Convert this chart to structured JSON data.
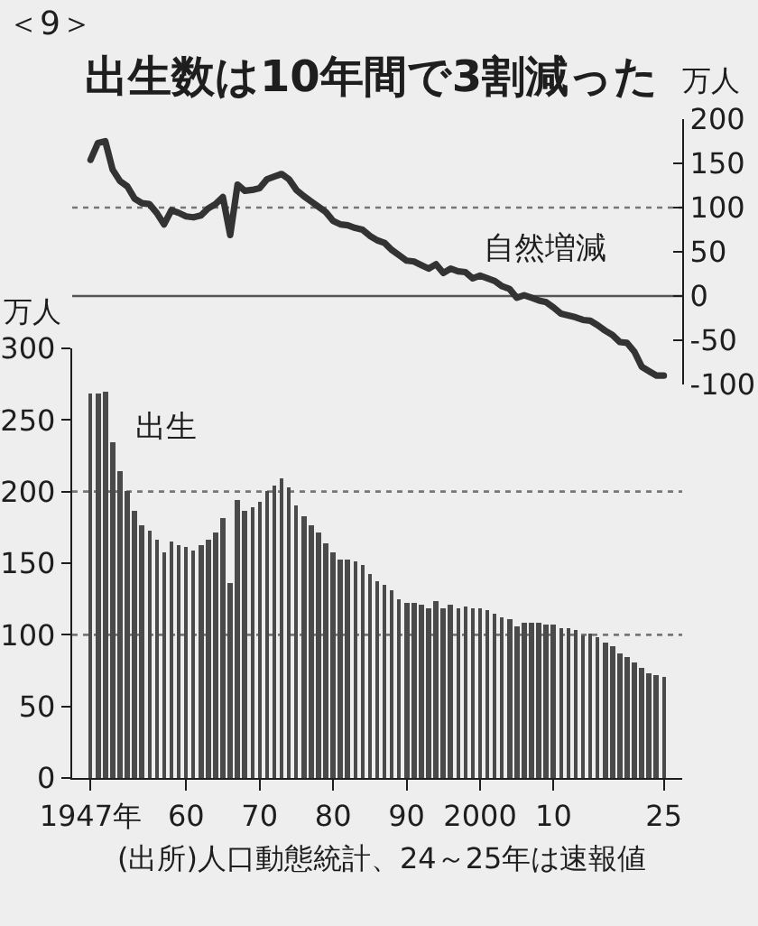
{
  "chart_data": [
    {
      "type": "line",
      "title": "出生数は10年間で3割減った",
      "ylabel": "万人",
      "annotations": [
        "＜9＞"
      ],
      "x": [
        1947,
        1948,
        1949,
        1950,
        1951,
        1952,
        1953,
        1954,
        1955,
        1956,
        1957,
        1958,
        1959,
        1960,
        1961,
        1962,
        1963,
        1964,
        1965,
        1966,
        1967,
        1968,
        1969,
        1970,
        1971,
        1972,
        1973,
        1974,
        1975,
        1976,
        1977,
        1978,
        1979,
        1980,
        1981,
        1982,
        1983,
        1984,
        1985,
        1986,
        1987,
        1988,
        1989,
        1990,
        1991,
        1992,
        1993,
        1994,
        1995,
        1996,
        1997,
        1998,
        1999,
        2000,
        2001,
        2002,
        2003,
        2004,
        2005,
        2006,
        2007,
        2008,
        2009,
        2010,
        2011,
        2012,
        2013,
        2014,
        2015,
        2016,
        2017,
        2018,
        2019,
        2020,
        2021,
        2022,
        2023,
        2024,
        2025
      ],
      "series": [
        {
          "name": "自然増減",
          "color": "#333333",
          "values": [
            154,
            173,
            175,
            143,
            130,
            124,
            110,
            105,
            104,
            94,
            81,
            97,
            94,
            90,
            89,
            91,
            99,
            104,
            112,
            69,
            126,
            119,
            120,
            122,
            132,
            135,
            138,
            132,
            120,
            113,
            107,
            101,
            95,
            85,
            81,
            80,
            77,
            75,
            68,
            63,
            60,
            52,
            46,
            40,
            39,
            35,
            31,
            36,
            26,
            31,
            28,
            27,
            20,
            23,
            20,
            17,
            11,
            8,
            -2,
            1,
            -2,
            -5,
            -7,
            -13,
            -20,
            -22,
            -24,
            -27,
            -28,
            -33,
            -39,
            -44,
            -52,
            -53,
            -63,
            -80,
            -85,
            -90,
            -90
          ]
        }
      ],
      "xlim": [
        1944.5,
        2027.5
      ],
      "ylim": [
        -100,
        200
      ],
      "yticks": [
        -100,
        -50,
        0,
        50,
        100,
        150,
        200
      ],
      "tick_labels": "y",
      "ref_lines": [
        {
          "axis": "y",
          "value": 100,
          "line_style": "dotted",
          "color": "#777777"
        },
        {
          "axis": "y",
          "value": 0,
          "line_style": "solid",
          "color": "#555555"
        }
      ],
      "legend": false
    },
    {
      "type": "bar",
      "ylabel": "万人",
      "annotations": [
        "(出所)人口動態統計、24～25年は速報値"
      ],
      "x": [
        1947,
        1948,
        1949,
        1950,
        1951,
        1952,
        1953,
        1954,
        1955,
        1956,
        1957,
        1958,
        1959,
        1960,
        1961,
        1962,
        1963,
        1964,
        1965,
        1966,
        1967,
        1968,
        1969,
        1970,
        1971,
        1972,
        1973,
        1974,
        1975,
        1976,
        1977,
        1978,
        1979,
        1980,
        1981,
        1982,
        1983,
        1984,
        1985,
        1986,
        1987,
        1988,
        1989,
        1990,
        1991,
        1992,
        1993,
        1994,
        1995,
        1996,
        1997,
        1998,
        1999,
        2000,
        2001,
        2002,
        2003,
        2004,
        2005,
        2006,
        2007,
        2008,
        2009,
        2010,
        2011,
        2012,
        2013,
        2014,
        2015,
        2016,
        2017,
        2018,
        2019,
        2020,
        2021,
        2022,
        2023,
        2024,
        2025
      ],
      "series": [
        {
          "name": "出生",
          "color": "#4a4a4a",
          "values": [
            268,
            268,
            270,
            234,
            214,
            201,
            187,
            177,
            173,
            167,
            157,
            165,
            163,
            161,
            159,
            162,
            166,
            172,
            182,
            136,
            194,
            187,
            189,
            193,
            200,
            204,
            209,
            203,
            190,
            183,
            176,
            171,
            164,
            158,
            153,
            152,
            151,
            149,
            143,
            138,
            135,
            131,
            125,
            122,
            122,
            121,
            119,
            124,
            119,
            121,
            119,
            120,
            118,
            119,
            117,
            115,
            112,
            111,
            106,
            109,
            109,
            109,
            107,
            107,
            105,
            104,
            103,
            100,
            101,
            98,
            95,
            92,
            87,
            84,
            81,
            77,
            73,
            72,
            71
          ]
        }
      ],
      "xlim": [
        1944.5,
        2027.5
      ],
      "xticks": [
        {
          "value": 1947,
          "label": "1947年"
        },
        {
          "value": 1960,
          "label": "60"
        },
        {
          "value": 1970,
          "label": "70"
        },
        {
          "value": 1980,
          "label": "80"
        },
        {
          "value": 1990,
          "label": "90"
        },
        2000,
        {
          "value": 2010,
          "label": "10"
        },
        {
          "value": 2025,
          "label": "25"
        }
      ],
      "ylim": [
        0,
        300
      ],
      "yticks": [
        0,
        50,
        100,
        150,
        200,
        250,
        300
      ],
      "ref_lines": [
        {
          "axis": "y",
          "value": 100,
          "line_style": "dotted",
          "color": "#777777"
        },
        {
          "axis": "y",
          "value": 200,
          "line_style": "dotted",
          "color": "#777777"
        }
      ],
      "legend": false
    }
  ]
}
